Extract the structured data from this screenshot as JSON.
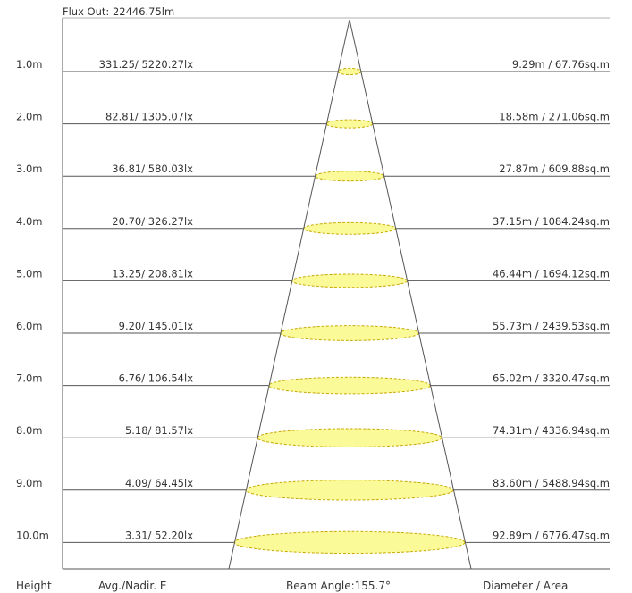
{
  "flux_out": "Flux Out: 22446.75lm",
  "footer": {
    "height": "Height",
    "avg_nadir": "Avg./Nadir. E",
    "beam_angle": "Beam Angle:155.7°",
    "diameter_area": "Diameter / Area"
  },
  "colors": {
    "ellipse_fill": "#fafa99",
    "ellipse_stroke": "#c8a800",
    "line": "#555555",
    "text": "#333333"
  },
  "rows": [
    {
      "height": "1.0m",
      "illuminance": "331.25/ 5220.27lx",
      "diameter_area": "9.29m / 67.76sq.m",
      "diameter_m": 9.29
    },
    {
      "height": "2.0m",
      "illuminance": "82.81/ 1305.07lx",
      "diameter_area": "18.58m / 271.06sq.m",
      "diameter_m": 18.58
    },
    {
      "height": "3.0m",
      "illuminance": "36.81/ 580.03lx",
      "diameter_area": "27.87m / 609.88sq.m",
      "diameter_m": 27.87
    },
    {
      "height": "4.0m",
      "illuminance": "20.70/ 326.27lx",
      "diameter_area": "37.15m / 1084.24sq.m",
      "diameter_m": 37.15
    },
    {
      "height": "5.0m",
      "illuminance": "13.25/ 208.81lx",
      "diameter_area": "46.44m / 1694.12sq.m",
      "diameter_m": 46.44
    },
    {
      "height": "6.0m",
      "illuminance": "9.20/ 145.01lx",
      "diameter_area": "55.73m / 2439.53sq.m",
      "diameter_m": 55.73
    },
    {
      "height": "7.0m",
      "illuminance": "6.76/ 106.54lx",
      "diameter_area": "65.02m / 3320.47sq.m",
      "diameter_m": 65.02
    },
    {
      "height": "8.0m",
      "illuminance": "5.18/ 81.57lx",
      "diameter_area": "74.31m / 4336.94sq.m",
      "diameter_m": 74.31
    },
    {
      "height": "9.0m",
      "illuminance": "4.09/ 64.45lx",
      "diameter_area": "83.60m / 5488.94sq.m",
      "diameter_m": 83.6
    },
    {
      "height": "10.0m",
      "illuminance": "3.31/ 52.20lx",
      "diameter_area": "92.89m / 6776.47sq.m",
      "diameter_m": 92.89
    }
  ]
}
